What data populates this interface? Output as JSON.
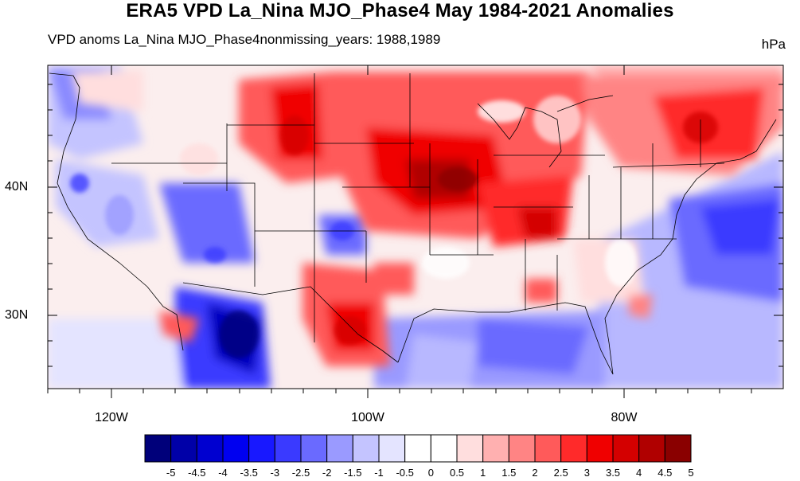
{
  "title": "ERA5 VPD La_Nina MJO_Phase4 May 1984-2021 Anomalies",
  "subtitle_left": "VPD anoms La_Nina MJO_Phase4nonmissing_years: 1988,1989",
  "units": "hPa",
  "y_axis_labels": [
    "40N",
    "30N"
  ],
  "x_axis_labels": [
    "120W",
    "100W",
    "80W"
  ],
  "colorbar": {
    "colors": [
      "#00007a",
      "#0000a8",
      "#0000d0",
      "#0000f0",
      "#1818ff",
      "#3a3aff",
      "#6a6aff",
      "#9a9aff",
      "#c4c4ff",
      "#e4e4ff",
      "#ffffff",
      "#ffffff",
      "#ffdede",
      "#ffb0b0",
      "#ff8484",
      "#ff5a5a",
      "#ff2a2a",
      "#f00000",
      "#d40000",
      "#b00000",
      "#8a0000"
    ],
    "labels": [
      "-5",
      "-4.5",
      "-4",
      "-3.5",
      "-3",
      "-2.5",
      "-2",
      "-1.5",
      "-1",
      "-0.5",
      "0",
      "0.5",
      "1",
      "1.5",
      "2",
      "2.5",
      "3",
      "3.5",
      "4",
      "4.5",
      "5"
    ]
  }
}
